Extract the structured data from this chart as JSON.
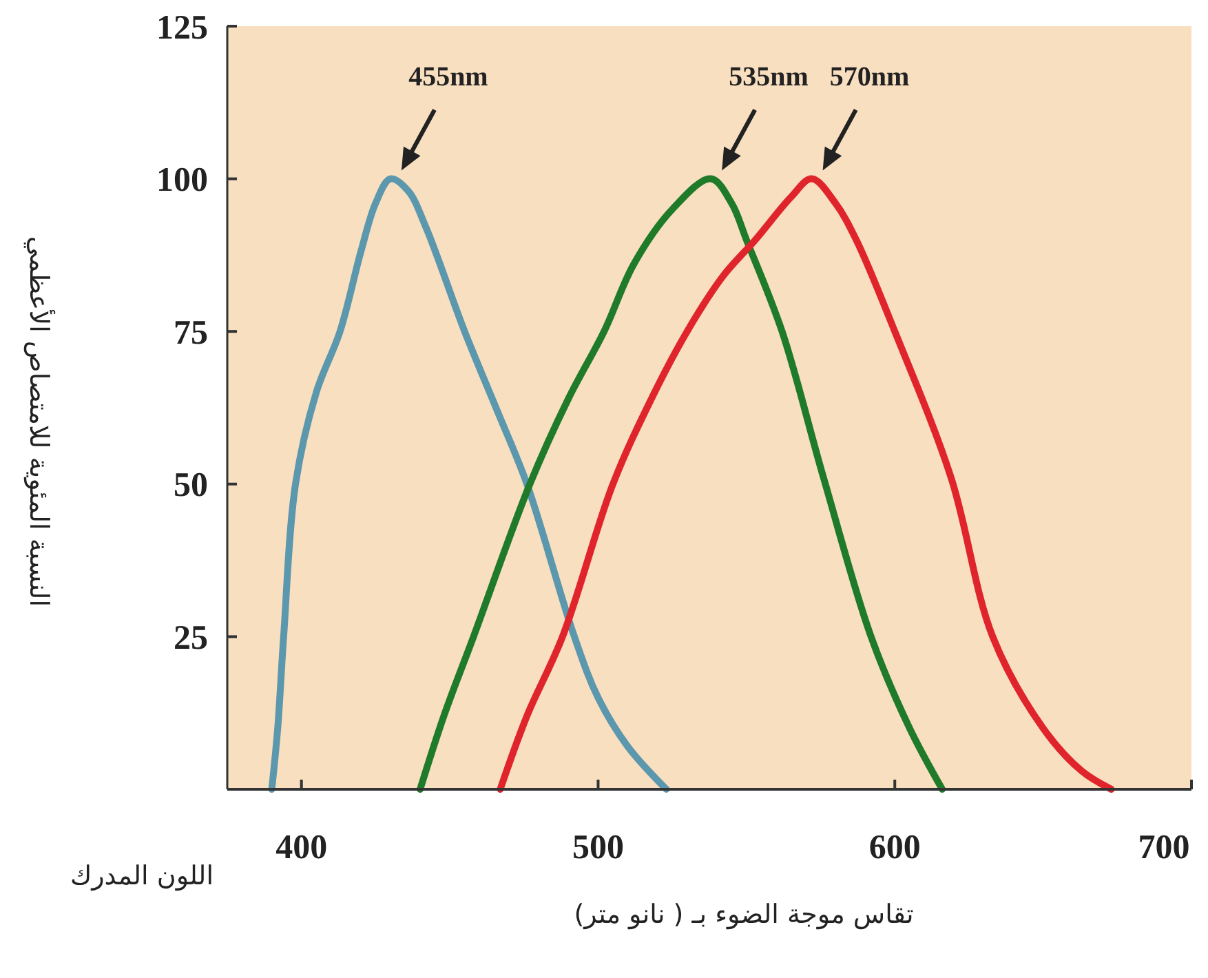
{
  "chart_data": {
    "type": "line",
    "xlabel": "تقاس موجة الضوء بـ ( نانو متر)",
    "ylabel": "النسبة المئوية للامتصاص الأعظمي",
    "xlim": [
      375,
      700
    ],
    "xticks": [
      400,
      500,
      600,
      700
    ],
    "ylim": [
      0,
      125
    ],
    "yticks": [
      25,
      50,
      75,
      100,
      125
    ],
    "grid": false,
    "marker": "none",
    "line_style": "solid",
    "series": [
      {
        "color": "#5b97ad",
        "x": [
          390,
          392,
          394,
          398,
          405,
          413,
          420,
          425,
          430,
          436,
          442,
          455,
          466,
          476,
          492,
          500,
          510,
          523
        ],
        "values": [
          0,
          10,
          25,
          50,
          65,
          75,
          88,
          96,
          100,
          98,
          92,
          75,
          62,
          50,
          25,
          15,
          7,
          0
        ]
      },
      {
        "color": "#1f7a2a",
        "x": [
          440,
          448,
          458,
          477,
          490,
          502,
          512,
          525,
          538,
          545,
          550,
          562,
          576,
          592,
          605,
          616
        ],
        "values": [
          0,
          12,
          25,
          50,
          64,
          75,
          86,
          95,
          100,
          96,
          90,
          75,
          51,
          25,
          10,
          0
        ]
      },
      {
        "color": "#e0242c",
        "x": [
          467,
          476,
          488,
          505,
          518,
          530,
          542,
          553,
          565,
          572,
          580,
          587,
          600,
          619,
          633,
          650,
          663,
          673
        ],
        "values": [
          0,
          12,
          25,
          50,
          64,
          75,
          84,
          90,
          97,
          100,
          96,
          90,
          75,
          51,
          25,
          10,
          3,
          0
        ]
      }
    ],
    "annotations": [
      "455nm",
      "535nm",
      "570nm",
      "اللون المدرك"
    ]
  }
}
